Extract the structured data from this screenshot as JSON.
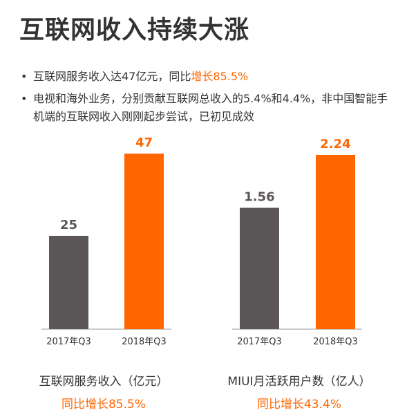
{
  "title": "互联网收入持续大涨",
  "bullets": [
    {
      "marker": "•",
      "text": "互联网服务收入达47亿元，同比",
      "highlight": "增长85.5%"
    },
    {
      "marker": "•",
      "text": "电视和海外业务，分别贡献互联网总收入的5.4%和4.4%，非中国智能手机端的互联网收入刚刚起步尝试，已初见成效",
      "highlight": ""
    }
  ],
  "colors": {
    "accent": "#ff6600",
    "gray_bar": "#5b5658",
    "text": "#333333"
  },
  "chart_data": [
    {
      "type": "bar",
      "categories": [
        "2017年Q3",
        "2018年Q3"
      ],
      "values": [
        25,
        47
      ],
      "value_labels": [
        "25",
        "47"
      ],
      "xlabel": "互联网服务收入（亿元）",
      "growth_label": "同比增长85.5%",
      "ylim": [
        0,
        50
      ]
    },
    {
      "type": "bar",
      "categories": [
        "2017年Q3",
        "2018年Q3"
      ],
      "values": [
        1.56,
        2.24
      ],
      "value_labels": [
        "1.56",
        "2.24"
      ],
      "xlabel": "MIUI月活跃用户数（亿人）",
      "growth_label": "同比增长43.4%",
      "ylim": [
        0,
        2.4
      ]
    }
  ]
}
